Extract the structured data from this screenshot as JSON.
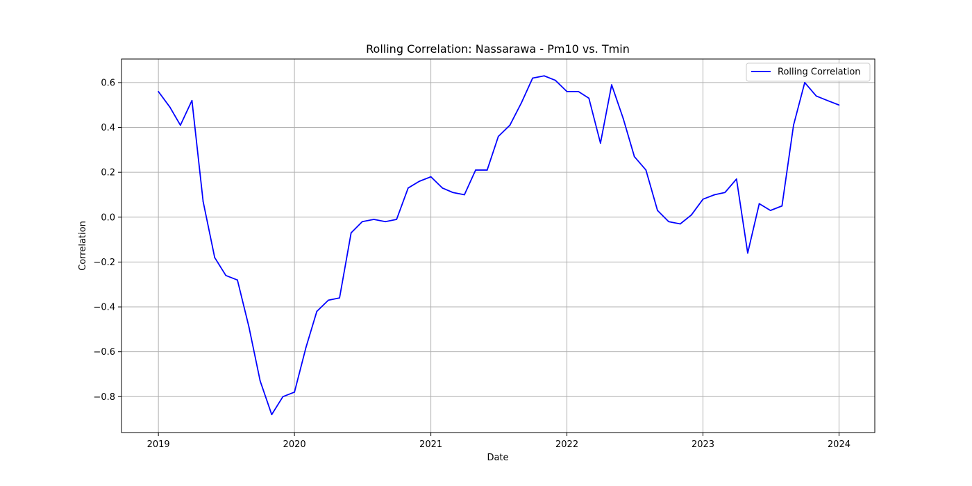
{
  "chart_data": {
    "type": "line",
    "title": "Rolling Correlation: Nassarawa - Pm10 vs. Tmin",
    "xlabel": "Date",
    "ylabel": "Correlation",
    "xlim": [
      "2018-09-24",
      "2024-04-06"
    ],
    "ylim": [
      -0.96,
      0.705
    ],
    "x_ticks": [
      {
        "date": "2019-01-01",
        "label": "2019"
      },
      {
        "date": "2020-01-01",
        "label": "2020"
      },
      {
        "date": "2021-01-01",
        "label": "2021"
      },
      {
        "date": "2022-01-01",
        "label": "2022"
      },
      {
        "date": "2023-01-01",
        "label": "2023"
      },
      {
        "date": "2024-01-01",
        "label": "2024"
      }
    ],
    "y_ticks": [
      {
        "value": 0.6,
        "label": "0.6"
      },
      {
        "value": 0.4,
        "label": "0.4"
      },
      {
        "value": 0.2,
        "label": "0.2"
      },
      {
        "value": 0.0,
        "label": "0.0"
      },
      {
        "value": -0.2,
        "label": "−0.2"
      },
      {
        "value": -0.4,
        "label": "−0.4"
      },
      {
        "value": -0.6,
        "label": "−0.6"
      },
      {
        "value": -0.8,
        "label": "−0.8"
      }
    ],
    "grid": true,
    "legend_position": "top-right",
    "series": [
      {
        "name": "Rolling Correlation",
        "color": "#0000ff",
        "points": [
          {
            "x": "2019-01-01",
            "y": 0.56
          },
          {
            "x": "2019-02-01",
            "y": 0.49
          },
          {
            "x": "2019-03-01",
            "y": 0.41
          },
          {
            "x": "2019-04-01",
            "y": 0.52
          },
          {
            "x": "2019-05-01",
            "y": 0.07
          },
          {
            "x": "2019-06-01",
            "y": -0.18
          },
          {
            "x": "2019-07-01",
            "y": -0.26
          },
          {
            "x": "2019-08-01",
            "y": -0.28
          },
          {
            "x": "2019-09-01",
            "y": -0.49
          },
          {
            "x": "2019-10-01",
            "y": -0.73
          },
          {
            "x": "2019-11-01",
            "y": -0.88
          },
          {
            "x": "2019-12-01",
            "y": -0.8
          },
          {
            "x": "2020-01-01",
            "y": -0.78
          },
          {
            "x": "2020-02-01",
            "y": -0.58
          },
          {
            "x": "2020-03-01",
            "y": -0.42
          },
          {
            "x": "2020-04-01",
            "y": -0.37
          },
          {
            "x": "2020-05-01",
            "y": -0.36
          },
          {
            "x": "2020-06-01",
            "y": -0.07
          },
          {
            "x": "2020-07-01",
            "y": -0.02
          },
          {
            "x": "2020-08-01",
            "y": -0.01
          },
          {
            "x": "2020-09-01",
            "y": -0.02
          },
          {
            "x": "2020-10-01",
            "y": -0.01
          },
          {
            "x": "2020-11-01",
            "y": 0.13
          },
          {
            "x": "2020-12-01",
            "y": 0.16
          },
          {
            "x": "2021-01-01",
            "y": 0.18
          },
          {
            "x": "2021-02-01",
            "y": 0.13
          },
          {
            "x": "2021-03-01",
            "y": 0.11
          },
          {
            "x": "2021-04-01",
            "y": 0.1
          },
          {
            "x": "2021-05-01",
            "y": 0.21
          },
          {
            "x": "2021-06-01",
            "y": 0.21
          },
          {
            "x": "2021-07-01",
            "y": 0.36
          },
          {
            "x": "2021-08-01",
            "y": 0.41
          },
          {
            "x": "2021-09-01",
            "y": 0.51
          },
          {
            "x": "2021-10-01",
            "y": 0.62
          },
          {
            "x": "2021-11-01",
            "y": 0.63
          },
          {
            "x": "2021-12-01",
            "y": 0.61
          },
          {
            "x": "2022-01-01",
            "y": 0.56
          },
          {
            "x": "2022-02-01",
            "y": 0.56
          },
          {
            "x": "2022-03-01",
            "y": 0.53
          },
          {
            "x": "2022-04-01",
            "y": 0.33
          },
          {
            "x": "2022-05-01",
            "y": 0.59
          },
          {
            "x": "2022-06-01",
            "y": 0.44
          },
          {
            "x": "2022-07-01",
            "y": 0.27
          },
          {
            "x": "2022-08-01",
            "y": 0.21
          },
          {
            "x": "2022-09-01",
            "y": 0.03
          },
          {
            "x": "2022-10-01",
            "y": -0.02
          },
          {
            "x": "2022-11-01",
            "y": -0.03
          },
          {
            "x": "2022-12-01",
            "y": 0.01
          },
          {
            "x": "2023-01-01",
            "y": 0.08
          },
          {
            "x": "2023-02-01",
            "y": 0.1
          },
          {
            "x": "2023-03-01",
            "y": 0.11
          },
          {
            "x": "2023-04-01",
            "y": 0.17
          },
          {
            "x": "2023-05-01",
            "y": -0.16
          },
          {
            "x": "2023-06-01",
            "y": 0.06
          },
          {
            "x": "2023-07-01",
            "y": 0.03
          },
          {
            "x": "2023-08-01",
            "y": 0.05
          },
          {
            "x": "2023-09-01",
            "y": 0.41
          },
          {
            "x": "2023-10-01",
            "y": 0.6
          },
          {
            "x": "2023-11-01",
            "y": 0.54
          },
          {
            "x": "2023-12-01",
            "y": 0.52
          },
          {
            "x": "2024-01-01",
            "y": 0.5
          }
        ]
      }
    ]
  }
}
